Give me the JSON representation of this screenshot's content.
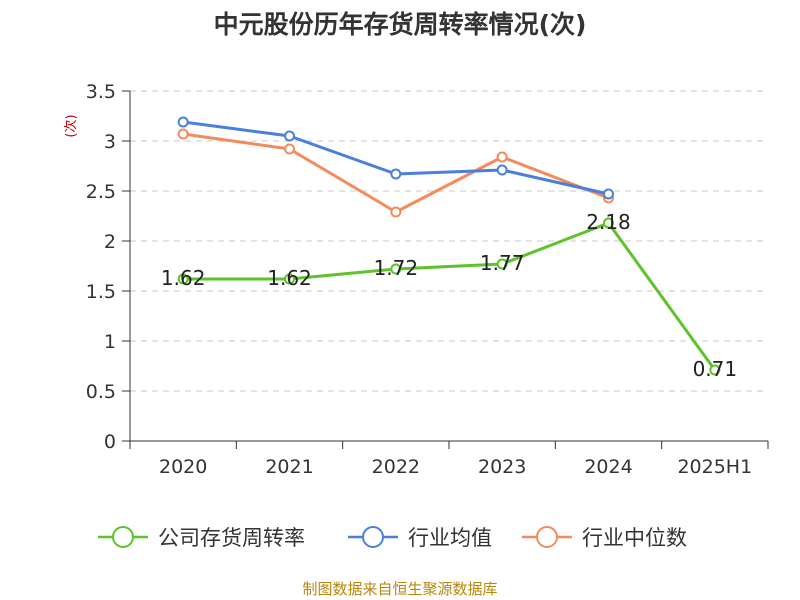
{
  "chart_data": {
    "type": "line",
    "title": "中元股份历年存货周转率情况(次)",
    "ylabel": "(次)",
    "categories": [
      "2020",
      "2021",
      "2022",
      "2023",
      "2024",
      "2025H1"
    ],
    "ylim": [
      0,
      3.5
    ],
    "yticks": [
      "0",
      "0.5",
      "1",
      "1.5",
      "2",
      "2.5",
      "3",
      "3.5"
    ],
    "grid": true,
    "legend_position": "bottom",
    "series": [
      {
        "name": "公司存货周转率",
        "color": "#5ec22a",
        "values": [
          1.62,
          1.62,
          1.72,
          1.77,
          2.18,
          0.71
        ],
        "labels": [
          "1.62",
          "1.62",
          "1.72",
          "1.77",
          "2.18",
          "0.71"
        ]
      },
      {
        "name": "行业均值",
        "color": "#4a7fdc",
        "values": [
          3.19,
          3.05,
          2.67,
          2.71,
          2.47,
          null
        ]
      },
      {
        "name": "行业中位数",
        "color": "#f48b5c",
        "values": [
          3.07,
          2.92,
          2.29,
          2.84,
          2.43,
          null
        ]
      }
    ]
  },
  "source": "制图数据来自恒生聚源数据库"
}
